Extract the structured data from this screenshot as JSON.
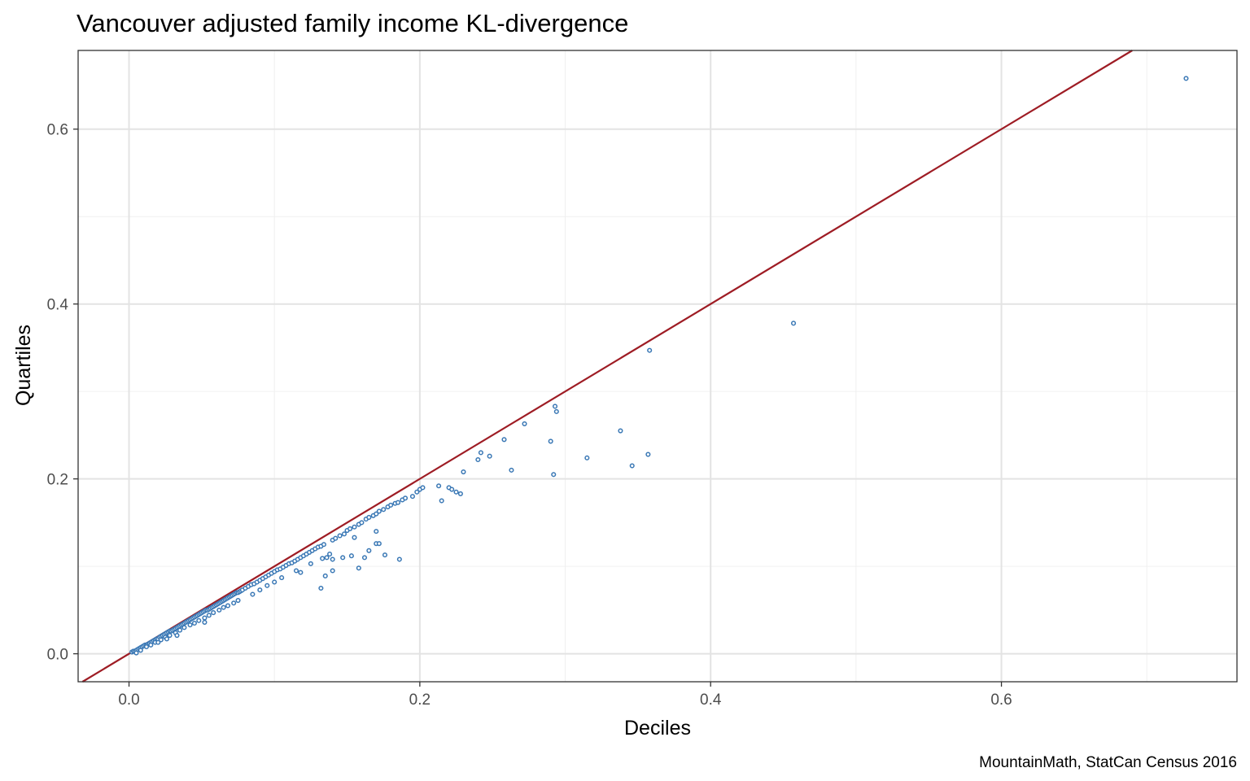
{
  "chart_data": {
    "type": "scatter",
    "title": "Vancouver adjusted family income KL-divergence",
    "xlabel": "Deciles",
    "ylabel": "Quartiles",
    "caption": "MountainMath, StatCan Census 2016",
    "xlim": [
      -0.035,
      0.762
    ],
    "ylim": [
      -0.032,
      0.69
    ],
    "x_ticks": [
      0.0,
      0.2,
      0.4,
      0.6
    ],
    "y_ticks": [
      0.0,
      0.2,
      0.4,
      0.6
    ],
    "x_tick_labels": [
      "0.0",
      "0.2",
      "0.4",
      "0.6"
    ],
    "y_tick_labels": [
      "0.0",
      "0.2",
      "0.4",
      "0.6"
    ],
    "grid": true,
    "reference_line": {
      "intercept": 0,
      "slope": 1,
      "color": "#9e1c24"
    },
    "point_color": "#3a78b5",
    "series": [
      {
        "x": [
          0.002,
          0.003,
          0.004,
          0.005,
          0.006,
          0.007,
          0.008,
          0.009,
          0.01,
          0.011,
          0.012,
          0.013,
          0.014,
          0.015,
          0.016,
          0.017,
          0.018,
          0.019,
          0.02,
          0.021,
          0.022,
          0.023,
          0.024,
          0.025,
          0.026,
          0.027,
          0.028,
          0.029,
          0.03,
          0.031,
          0.032,
          0.033,
          0.034,
          0.035,
          0.036,
          0.037,
          0.038,
          0.039,
          0.04,
          0.041,
          0.042,
          0.043,
          0.044,
          0.045,
          0.046,
          0.047,
          0.048,
          0.049,
          0.05,
          0.051,
          0.052,
          0.053,
          0.054,
          0.055,
          0.056,
          0.057,
          0.058,
          0.059,
          0.06,
          0.061,
          0.062,
          0.063,
          0.064,
          0.065,
          0.066,
          0.067,
          0.068,
          0.069,
          0.07,
          0.071,
          0.072,
          0.073,
          0.074,
          0.075,
          0.076,
          0.077,
          0.078,
          0.08,
          0.082,
          0.084,
          0.086,
          0.088,
          0.09,
          0.092,
          0.094,
          0.096,
          0.098,
          0.1,
          0.102,
          0.104,
          0.106,
          0.108,
          0.11,
          0.112,
          0.114,
          0.116,
          0.118,
          0.12,
          0.122,
          0.124,
          0.126,
          0.128,
          0.13,
          0.132,
          0.134,
          0.136,
          0.138,
          0.14,
          0.142,
          0.145,
          0.148,
          0.15,
          0.152,
          0.155,
          0.158,
          0.16,
          0.163,
          0.165,
          0.168,
          0.17,
          0.172,
          0.175,
          0.178,
          0.18,
          0.183,
          0.185,
          0.188,
          0.19,
          0.195,
          0.198,
          0.2,
          0.202,
          0.213,
          0.215,
          0.22,
          0.222,
          0.225,
          0.228,
          0.23,
          0.24,
          0.242,
          0.248,
          0.258,
          0.263,
          0.272,
          0.29,
          0.292,
          0.293,
          0.294,
          0.315,
          0.338,
          0.346,
          0.357,
          0.358,
          0.457,
          0.727,
          0.005,
          0.008,
          0.012,
          0.015,
          0.018,
          0.022,
          0.025,
          0.028,
          0.032,
          0.035,
          0.038,
          0.042,
          0.045,
          0.048,
          0.052,
          0.055,
          0.058,
          0.062,
          0.065,
          0.068,
          0.072,
          0.075,
          0.085,
          0.09,
          0.095,
          0.1,
          0.105,
          0.115,
          0.125,
          0.133,
          0.14,
          0.147,
          0.153,
          0.162,
          0.17,
          0.176,
          0.186,
          0.052,
          0.033,
          0.026,
          0.02,
          0.135,
          0.132,
          0.118,
          0.172,
          0.165,
          0.14,
          0.155,
          0.17,
          0.158
        ],
        "y": [
          0.002,
          0.003,
          0.003,
          0.004,
          0.005,
          0.006,
          0.007,
          0.008,
          0.009,
          0.01,
          0.01,
          0.011,
          0.012,
          0.013,
          0.014,
          0.015,
          0.016,
          0.017,
          0.017,
          0.019,
          0.02,
          0.021,
          0.022,
          0.023,
          0.024,
          0.025,
          0.026,
          0.026,
          0.027,
          0.028,
          0.029,
          0.03,
          0.031,
          0.032,
          0.033,
          0.034,
          0.035,
          0.036,
          0.037,
          0.038,
          0.039,
          0.04,
          0.041,
          0.042,
          0.043,
          0.044,
          0.045,
          0.046,
          0.047,
          0.048,
          0.049,
          0.05,
          0.05,
          0.051,
          0.052,
          0.053,
          0.054,
          0.055,
          0.056,
          0.057,
          0.058,
          0.059,
          0.06,
          0.061,
          0.062,
          0.063,
          0.064,
          0.065,
          0.066,
          0.067,
          0.068,
          0.069,
          0.07,
          0.07,
          0.071,
          0.072,
          0.073,
          0.075,
          0.077,
          0.079,
          0.08,
          0.082,
          0.084,
          0.086,
          0.088,
          0.09,
          0.092,
          0.094,
          0.096,
          0.097,
          0.099,
          0.101,
          0.103,
          0.104,
          0.106,
          0.108,
          0.11,
          0.112,
          0.114,
          0.116,
          0.118,
          0.12,
          0.122,
          0.123,
          0.125,
          0.11,
          0.114,
          0.13,
          0.132,
          0.135,
          0.137,
          0.141,
          0.143,
          0.145,
          0.148,
          0.15,
          0.154,
          0.156,
          0.158,
          0.16,
          0.163,
          0.165,
          0.168,
          0.17,
          0.172,
          0.173,
          0.176,
          0.178,
          0.18,
          0.185,
          0.188,
          0.19,
          0.192,
          0.175,
          0.19,
          0.188,
          0.185,
          0.183,
          0.208,
          0.222,
          0.23,
          0.226,
          0.245,
          0.21,
          0.263,
          0.243,
          0.205,
          0.283,
          0.277,
          0.224,
          0.255,
          0.215,
          0.228,
          0.347,
          0.378,
          0.658,
          0.001,
          0.004,
          0.008,
          0.01,
          0.013,
          0.016,
          0.019,
          0.021,
          0.024,
          0.027,
          0.03,
          0.033,
          0.035,
          0.038,
          0.041,
          0.044,
          0.047,
          0.05,
          0.053,
          0.055,
          0.058,
          0.061,
          0.068,
          0.073,
          0.078,
          0.082,
          0.087,
          0.095,
          0.103,
          0.109,
          0.108,
          0.11,
          0.112,
          0.11,
          0.126,
          0.113,
          0.108,
          0.036,
          0.021,
          0.017,
          0.013,
          0.089,
          0.075,
          0.093,
          0.126,
          0.118,
          0.095,
          0.133,
          0.14,
          0.098
        ]
      }
    ]
  }
}
